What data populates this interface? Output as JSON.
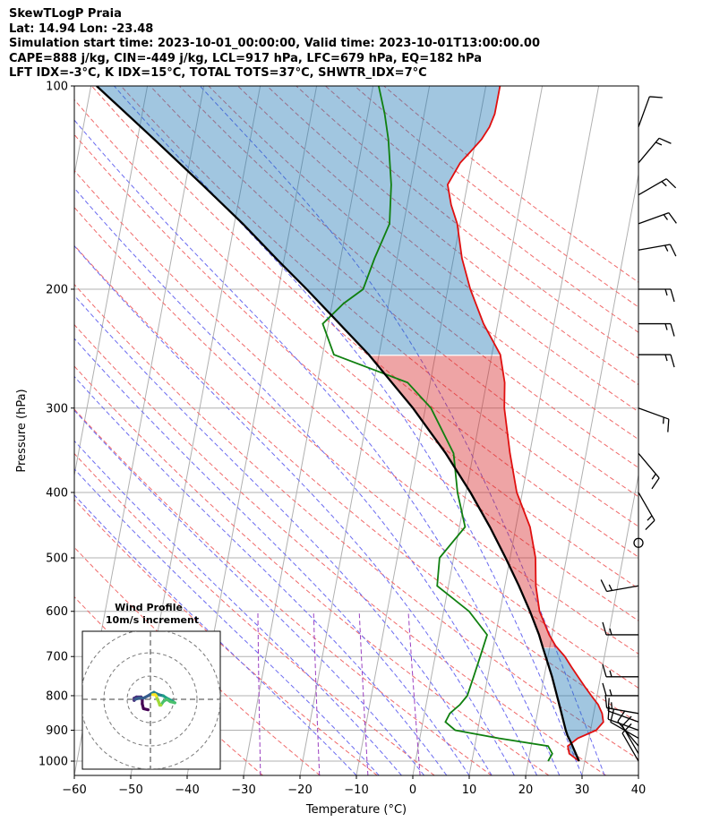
{
  "header": {
    "line1": "SkewTLogP Praia",
    "line2": "Lat: 14.94   Lon: -23.48",
    "line3": "Simulation start time: 2023-10-01_00:00:00, Valid time: 2023-10-01T13:00:00.00",
    "line4": "CAPE=888 j/kg, CIN=-449 j/kg, LCL=917 hPa, LFC=679 hPa, EQ=182 hPa",
    "line5": "LFT IDX=-3°C, K IDX=15°C, TOTAL TOTS=37°C, SHWTR_IDX=7°C"
  },
  "chart_data": [
    {
      "type": "line",
      "subtype": "skew-t log-p",
      "xlabel": "Temperature (°C)",
      "ylabel": "Pressure (hPa)",
      "xlim": [
        -60,
        40
      ],
      "ylim": [
        1050,
        100
      ],
      "y_scale": "log",
      "xticks": [
        "−60",
        "−50",
        "−40",
        "−30",
        "−20",
        "−10",
        "0",
        "10",
        "20",
        "30",
        "40"
      ],
      "yticks": [
        "100",
        "200",
        "300",
        "400",
        "500",
        "600",
        "700",
        "800",
        "900",
        "1000"
      ],
      "grid": true,
      "series": [
        {
          "role": "temperature",
          "color": "#e01010",
          "p": [
            1000,
            975,
            950,
            925,
            900,
            875,
            850,
            825,
            800,
            775,
            750,
            725,
            700,
            675,
            650,
            600,
            550,
            500,
            450,
            400,
            350,
            300,
            275,
            250,
            225,
            200,
            180,
            160,
            150,
            140,
            130,
            125,
            120,
            115,
            110,
            105,
            100
          ],
          "t": [
            29,
            27,
            26.5,
            28,
            31,
            32,
            31.5,
            30.5,
            29,
            27.5,
            26,
            24.5,
            23,
            21,
            19.5,
            17,
            15.5,
            14.5,
            12.5,
            9,
            6.5,
            4,
            3.2,
            1.5,
            -2.5,
            -6,
            -8.5,
            -10.5,
            -12.2,
            -13.5,
            -12,
            -10.5,
            -9,
            -8,
            -7.5,
            -7.5,
            -7.5
          ]
        },
        {
          "role": "dewpoint",
          "color": "#108010",
          "p": [
            1000,
            975,
            950,
            925,
            900,
            875,
            850,
            825,
            800,
            750,
            700,
            650,
            600,
            550,
            500,
            450,
            400,
            350,
            300,
            275,
            250,
            225,
            210,
            200,
            180,
            160,
            140,
            120,
            110,
            100
          ],
          "td": [
            23.5,
            24,
            23,
            14,
            6,
            4,
            4.5,
            6,
            7,
            7.5,
            8,
            8.5,
            4.5,
            -2,
            -2.5,
            1,
            -1.5,
            -3.5,
            -9,
            -14,
            -28,
            -31,
            -28,
            -25,
            -24,
            -22.5,
            -23.5,
            -25.5,
            -27,
            -29
          ]
        },
        {
          "role": "parcel",
          "color": "#000000",
          "p": [
            1000,
            970,
            940,
            917,
            900,
            850,
            800,
            750,
            700,
            679,
            650,
            600,
            550,
            500,
            450,
            400,
            350,
            300,
            250,
            200,
            182,
            160,
            140,
            120,
            100
          ],
          "t": [
            29,
            28,
            27,
            26.1,
            25.6,
            24.3,
            22.9,
            21.4,
            19.6,
            18.8,
            17.7,
            15.3,
            12.5,
            9.2,
            5.4,
            0.8,
            -4.9,
            -12.2,
            -21.8,
            -35,
            -40.8,
            -48.5,
            -57,
            -67,
            -79
          ]
        }
      ],
      "shaded_regions": [
        {
          "label": "CIN",
          "color": "#1f77b4",
          "opacity": 0.4
        },
        {
          "label": "CAPE",
          "color": "#d62728",
          "opacity": 0.4
        }
      ],
      "background_lines": {
        "isotherms": "gray solid",
        "dry_adiabats": "red dashed",
        "moist_adiabats": "blue dashed",
        "mixing_ratio": "purple dashed"
      },
      "barbs": [
        {
          "p": 1000,
          "dir": 330,
          "speed_kt": 12
        },
        {
          "p": 975,
          "dir": 330,
          "speed_kt": 10
        },
        {
          "p": 950,
          "dir": 320,
          "speed_kt": 10
        },
        {
          "p": 925,
          "dir": 300,
          "speed_kt": 10
        },
        {
          "p": 900,
          "dir": 290,
          "speed_kt": 10
        },
        {
          "p": 875,
          "dir": 290,
          "speed_kt": 10
        },
        {
          "p": 850,
          "dir": 280,
          "speed_kt": 15
        },
        {
          "p": 800,
          "dir": 270,
          "speed_kt": 15
        },
        {
          "p": 750,
          "dir": 270,
          "speed_kt": 15
        },
        {
          "p": 650,
          "dir": 270,
          "speed_kt": 15
        },
        {
          "p": 550,
          "dir": 260,
          "speed_kt": 15
        },
        {
          "p": 475,
          "dir": 0,
          "speed_kt": 0
        },
        {
          "p": 400,
          "dir": 150,
          "speed_kt": 15
        },
        {
          "p": 350,
          "dir": 140,
          "speed_kt": 15
        },
        {
          "p": 300,
          "dir": 110,
          "speed_kt": 15
        },
        {
          "p": 250,
          "dir": 90,
          "speed_kt": 15
        },
        {
          "p": 225,
          "dir": 90,
          "speed_kt": 15
        },
        {
          "p": 200,
          "dir": 90,
          "speed_kt": 15
        },
        {
          "p": 175,
          "dir": 80,
          "speed_kt": 15
        },
        {
          "p": 160,
          "dir": 70,
          "speed_kt": 15
        },
        {
          "p": 145,
          "dir": 60,
          "speed_kt": 15
        },
        {
          "p": 130,
          "dir": 40,
          "speed_kt": 15
        },
        {
          "p": 115,
          "dir": 20,
          "speed_kt": 10
        }
      ]
    },
    {
      "type": "line",
      "subtype": "hodograph",
      "title": "Wind Profile",
      "subtitle": "10m/s increment",
      "rings_ms": [
        10,
        20,
        30
      ],
      "points": [
        [
          -1,
          -4.5
        ],
        [
          -3,
          -4
        ],
        [
          -3.5,
          -2
        ],
        [
          -3.5,
          0
        ],
        [
          -4,
          1
        ],
        [
          -6,
          1
        ],
        [
          -7,
          0.5
        ],
        [
          -7,
          -0.5
        ],
        [
          -6.5,
          0
        ],
        [
          -5,
          0.5
        ],
        [
          -3,
          0.5
        ],
        [
          -1,
          1.5
        ],
        [
          0.5,
          2.5
        ],
        [
          1.5,
          3
        ],
        [
          2.5,
          2.5
        ],
        [
          3.5,
          2
        ],
        [
          5.5,
          1.5
        ],
        [
          7,
          0.5
        ],
        [
          8,
          0
        ],
        [
          9,
          -0.5
        ],
        [
          10.5,
          -1.5
        ],
        [
          8.5,
          -1
        ],
        [
          7,
          0
        ],
        [
          5.5,
          -1
        ],
        [
          4.5,
          -2.5
        ],
        [
          4,
          -2.5
        ],
        [
          3.5,
          -1
        ],
        [
          3,
          0
        ],
        [
          2.5,
          1.5
        ],
        [
          2,
          2
        ],
        [
          1.5,
          2
        ],
        [
          1,
          2
        ]
      ]
    }
  ]
}
